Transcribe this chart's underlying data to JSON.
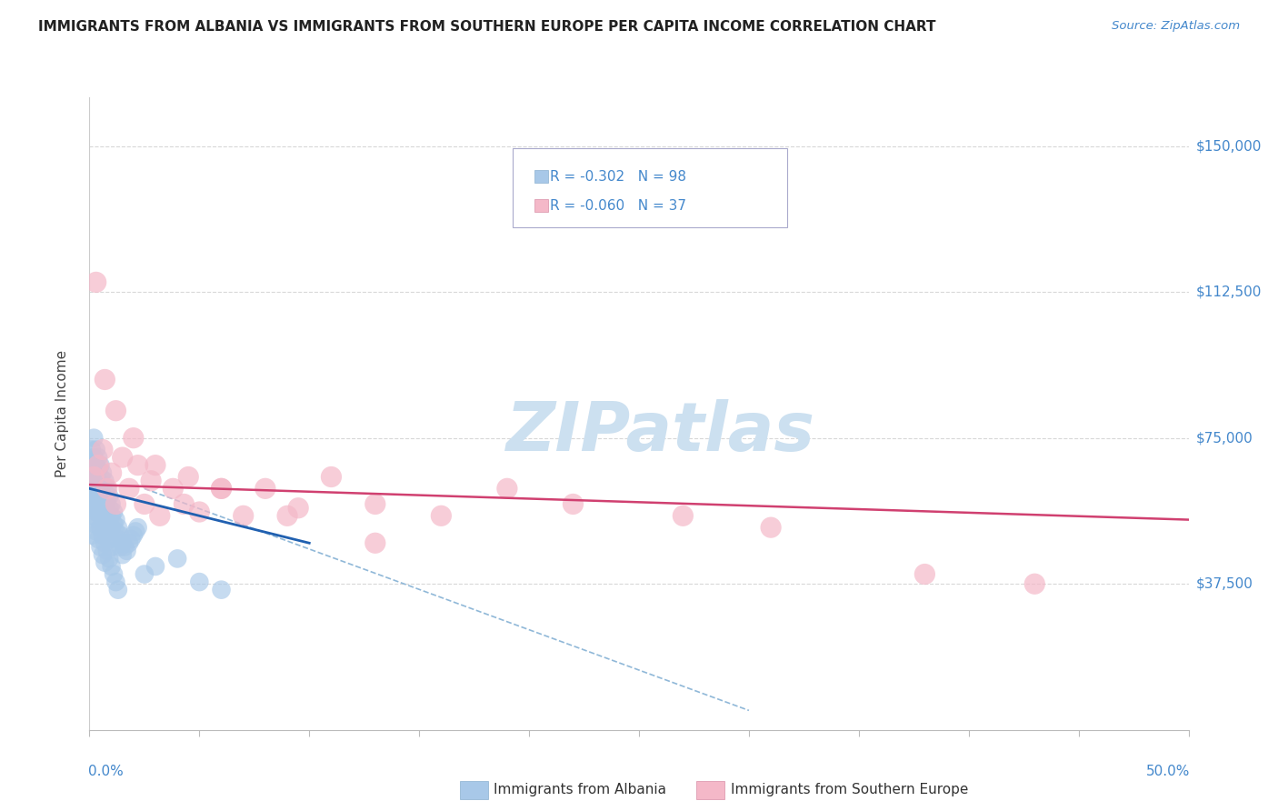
{
  "title": "IMMIGRANTS FROM ALBANIA VS IMMIGRANTS FROM SOUTHERN EUROPE PER CAPITA INCOME CORRELATION CHART",
  "source": "Source: ZipAtlas.com",
  "ylabel": "Per Capita Income",
  "xlim": [
    0,
    0.5
  ],
  "ylim": [
    0,
    162500
  ],
  "ytick_vals": [
    37500,
    75000,
    112500,
    150000
  ],
  "ytick_labels": [
    "$37,500",
    "$75,000",
    "$112,500",
    "$150,000"
  ],
  "xtick_vals": [
    0.0,
    0.05,
    0.1,
    0.15,
    0.2,
    0.25,
    0.3,
    0.35,
    0.4,
    0.45,
    0.5
  ],
  "legend1_label": "R = -0.302   N = 98",
  "legend2_label": "R = -0.060   N = 37",
  "albania_color": "#a8c8e8",
  "southern_color": "#f4b8c8",
  "line_albania_color": "#2060b0",
  "line_southern_color": "#d04070",
  "line_dashed_color": "#90b8d8",
  "watermark_color": "#cce0f0",
  "grid_color": "#d8d8d8",
  "title_color": "#222222",
  "source_color": "#4488cc",
  "label_color": "#4488cc",
  "albania_x": [
    0.001,
    0.001,
    0.001,
    0.001,
    0.001,
    0.001,
    0.002,
    0.002,
    0.002,
    0.002,
    0.002,
    0.002,
    0.002,
    0.003,
    0.003,
    0.003,
    0.003,
    0.003,
    0.003,
    0.004,
    0.004,
    0.004,
    0.004,
    0.004,
    0.005,
    0.005,
    0.005,
    0.005,
    0.006,
    0.006,
    0.006,
    0.006,
    0.007,
    0.007,
    0.007,
    0.008,
    0.008,
    0.008,
    0.009,
    0.009,
    0.01,
    0.01,
    0.01,
    0.011,
    0.011,
    0.012,
    0.012,
    0.013,
    0.013,
    0.014,
    0.014,
    0.015,
    0.015,
    0.016,
    0.017,
    0.018,
    0.019,
    0.02,
    0.021,
    0.022,
    0.001,
    0.001,
    0.002,
    0.002,
    0.003,
    0.003,
    0.004,
    0.004,
    0.005,
    0.005,
    0.006,
    0.006,
    0.007,
    0.007,
    0.008,
    0.009,
    0.01,
    0.011,
    0.012,
    0.013,
    0.001,
    0.002,
    0.002,
    0.003,
    0.003,
    0.004,
    0.005,
    0.005,
    0.006,
    0.007,
    0.008,
    0.009,
    0.01,
    0.04,
    0.03,
    0.025,
    0.05,
    0.06
  ],
  "albania_y": [
    72000,
    68000,
    65000,
    62000,
    60000,
    58000,
    75000,
    70000,
    67000,
    64000,
    62000,
    59000,
    57000,
    72000,
    68000,
    65000,
    62000,
    60000,
    57000,
    70000,
    67000,
    64000,
    61000,
    58000,
    68000,
    65000,
    62000,
    59000,
    66000,
    63000,
    60000,
    57000,
    64000,
    61000,
    58000,
    62000,
    59000,
    56000,
    60000,
    57000,
    58000,
    55000,
    52000,
    56000,
    53000,
    54000,
    51000,
    52000,
    49000,
    50000,
    47000,
    48000,
    45000,
    47000,
    46000,
    48000,
    49000,
    50000,
    51000,
    52000,
    55000,
    50000,
    58000,
    53000,
    56000,
    51000,
    54000,
    49000,
    52000,
    47000,
    50000,
    45000,
    48000,
    43000,
    46000,
    44000,
    42000,
    40000,
    38000,
    36000,
    63000,
    61000,
    66000,
    59000,
    64000,
    57000,
    62000,
    55000,
    60000,
    53000,
    51000,
    49000,
    47000,
    44000,
    42000,
    40000,
    38000,
    36000
  ],
  "southern_x": [
    0.002,
    0.004,
    0.006,
    0.008,
    0.01,
    0.012,
    0.015,
    0.018,
    0.022,
    0.025,
    0.028,
    0.032,
    0.038,
    0.043,
    0.05,
    0.06,
    0.07,
    0.08,
    0.095,
    0.11,
    0.13,
    0.16,
    0.19,
    0.22,
    0.27,
    0.31,
    0.38,
    0.43,
    0.003,
    0.007,
    0.012,
    0.02,
    0.03,
    0.045,
    0.06,
    0.09,
    0.13
  ],
  "southern_y": [
    65000,
    68000,
    72000,
    62000,
    66000,
    58000,
    70000,
    62000,
    68000,
    58000,
    64000,
    55000,
    62000,
    58000,
    56000,
    62000,
    55000,
    62000,
    57000,
    65000,
    58000,
    55000,
    62000,
    58000,
    55000,
    52000,
    40000,
    37500,
    115000,
    90000,
    82000,
    75000,
    68000,
    65000,
    62000,
    55000,
    48000
  ],
  "albania_line_x0": 0.0,
  "albania_line_x1": 0.1,
  "albania_line_y0": 62000,
  "albania_line_y1": 48000,
  "southern_line_x0": 0.0,
  "southern_line_x1": 0.5,
  "southern_line_y0": 63000,
  "southern_line_y1": 54000,
  "dashed_line_x0": 0.025,
  "dashed_line_x1": 0.3,
  "dashed_line_y0": 62000,
  "dashed_line_y1": 5000
}
